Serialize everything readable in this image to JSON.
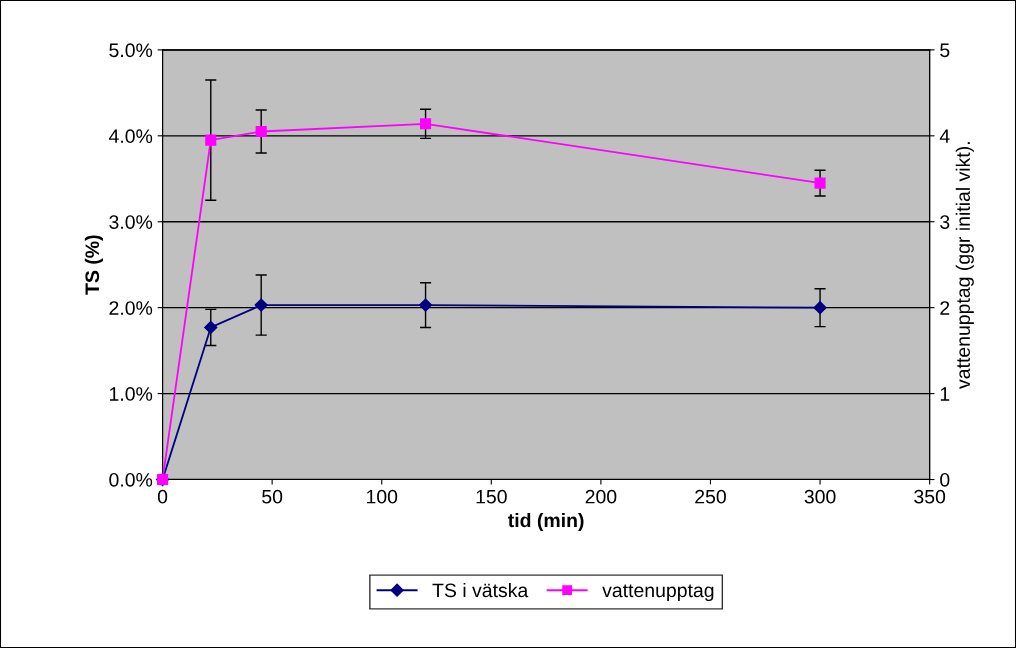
{
  "chart_data": {
    "type": "line",
    "xlabel": "tid (min)",
    "ylabel": "TS (%)",
    "y2label": "vattenupptag (ggr initial vikt).",
    "xlim": [
      0,
      350
    ],
    "xticks": [
      0,
      50,
      100,
      150,
      200,
      250,
      300,
      350
    ],
    "ylim": [
      0,
      5
    ],
    "yticks": [
      {
        "value": 0,
        "label": "0.0%"
      },
      {
        "value": 1,
        "label": "1.0%"
      },
      {
        "value": 2,
        "label": "2.0%"
      },
      {
        "value": 3,
        "label": "3.0%"
      },
      {
        "value": 4,
        "label": "4.0%"
      },
      {
        "value": 5,
        "label": "5.0%"
      }
    ],
    "y2lim": [
      0,
      5
    ],
    "y2ticks": [
      0,
      1,
      2,
      3,
      4,
      5
    ],
    "grid": "y",
    "legend": "bottom",
    "series": [
      {
        "name": "TS i vätska",
        "color": "#000080",
        "marker": "diamond",
        "x": [
          0,
          22,
          45,
          120,
          300
        ],
        "values": [
          0,
          1.77,
          2.03,
          2.03,
          2.0
        ],
        "errors": [
          null,
          0.21,
          0.35,
          0.26,
          0.22
        ]
      },
      {
        "name": "vattenupptag",
        "color": "#ff00ff",
        "marker": "square",
        "axis": "y2",
        "x": [
          0,
          22,
          45,
          120,
          300
        ],
        "values": [
          0,
          3.95,
          4.05,
          4.14,
          3.45
        ],
        "errors": [
          null,
          0.7,
          0.25,
          0.17,
          0.15
        ]
      }
    ]
  }
}
